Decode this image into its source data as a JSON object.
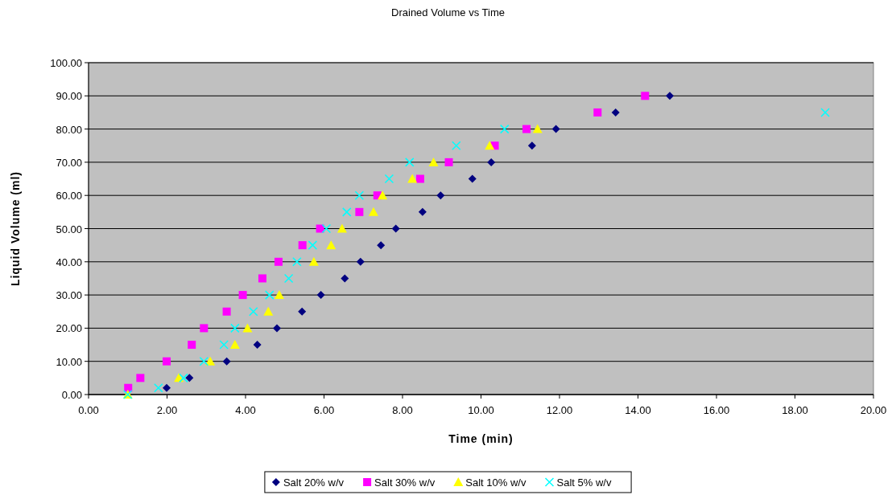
{
  "chart_data": {
    "type": "scatter",
    "title": "Drained Volume vs Time",
    "xlabel": "Time (min)",
    "ylabel": "Liquid Volume (ml)",
    "xlim": [
      0,
      20
    ],
    "ylim": [
      0,
      100
    ],
    "xticks": [
      {
        "value": 0,
        "label": "0.00"
      },
      {
        "value": 2,
        "label": "2.00"
      },
      {
        "value": 4,
        "label": "4.00"
      },
      {
        "value": 6,
        "label": "6.00"
      },
      {
        "value": 8,
        "label": "8.00"
      },
      {
        "value": 10,
        "label": "10.00"
      },
      {
        "value": 12,
        "label": "12.00"
      },
      {
        "value": 14,
        "label": "14.00"
      },
      {
        "value": 16,
        "label": "16.00"
      },
      {
        "value": 18,
        "label": "18.00"
      },
      {
        "value": 20,
        "label": "20.00"
      }
    ],
    "yticks": [
      {
        "value": 0,
        "label": "0.00"
      },
      {
        "value": 10,
        "label": "10.00"
      },
      {
        "value": 20,
        "label": "20.00"
      },
      {
        "value": 30,
        "label": "30.00"
      },
      {
        "value": 40,
        "label": "40.00"
      },
      {
        "value": 50,
        "label": "50.00"
      },
      {
        "value": 60,
        "label": "60.00"
      },
      {
        "value": 70,
        "label": "70.00"
      },
      {
        "value": 80,
        "label": "80.00"
      },
      {
        "value": 90,
        "label": "90.00"
      },
      {
        "value": 100,
        "label": "100.00"
      }
    ],
    "grid": "y",
    "legend": "bottom",
    "series": [
      {
        "name": "Salt 20% w/v",
        "color": "#000080",
        "marker": "diamond",
        "x": [
          1.99,
          2.57,
          3.52,
          4.3,
          4.8,
          5.44,
          5.92,
          6.53,
          6.93,
          7.45,
          7.83,
          8.51,
          8.97,
          9.78,
          10.26,
          11.3,
          11.91,
          13.43,
          14.81
        ],
        "values": [
          2,
          5,
          10,
          15,
          20,
          25,
          30,
          35,
          40,
          45,
          50,
          55,
          60,
          65,
          70,
          75,
          80,
          85,
          90
        ]
      },
      {
        "name": "Salt 30% w/v",
        "color": "#ff00ff",
        "marker": "square",
        "x": [
          1.01,
          1.32,
          1.99,
          2.63,
          2.94,
          3.52,
          3.93,
          4.43,
          4.84,
          5.45,
          5.9,
          6.9,
          7.36,
          8.45,
          9.18,
          10.35,
          11.16,
          12.97,
          14.18
        ],
        "values": [
          2,
          5,
          10,
          15,
          20,
          25,
          30,
          35,
          40,
          45,
          50,
          55,
          60,
          65,
          70,
          75,
          80,
          85,
          90
        ]
      },
      {
        "name": "Salt 10% w/v",
        "color": "#ffff00",
        "marker": "triangle",
        "x": [
          1.0,
          2.3,
          3.1,
          3.73,
          4.05,
          4.58,
          4.86,
          5.74,
          6.18,
          6.46,
          7.26,
          7.49,
          8.25,
          8.79,
          10.22,
          11.44
        ],
        "values": [
          0,
          5,
          10,
          15,
          20,
          25,
          30,
          40,
          45,
          50,
          55,
          60,
          65,
          70,
          75,
          80
        ]
      },
      {
        "name": "Salt 5% w/v",
        "color": "#00ffff",
        "marker": "cross",
        "x": [
          1.0,
          1.78,
          2.42,
          2.94,
          3.45,
          3.73,
          4.2,
          4.61,
          5.1,
          5.31,
          5.71,
          6.06,
          6.58,
          6.9,
          7.66,
          8.18,
          9.37,
          10.6,
          18.77
        ],
        "values": [
          0,
          2,
          5,
          10,
          15,
          20,
          25,
          30,
          35,
          40,
          45,
          50,
          55,
          60,
          65,
          70,
          75,
          80,
          85
        ]
      }
    ]
  }
}
